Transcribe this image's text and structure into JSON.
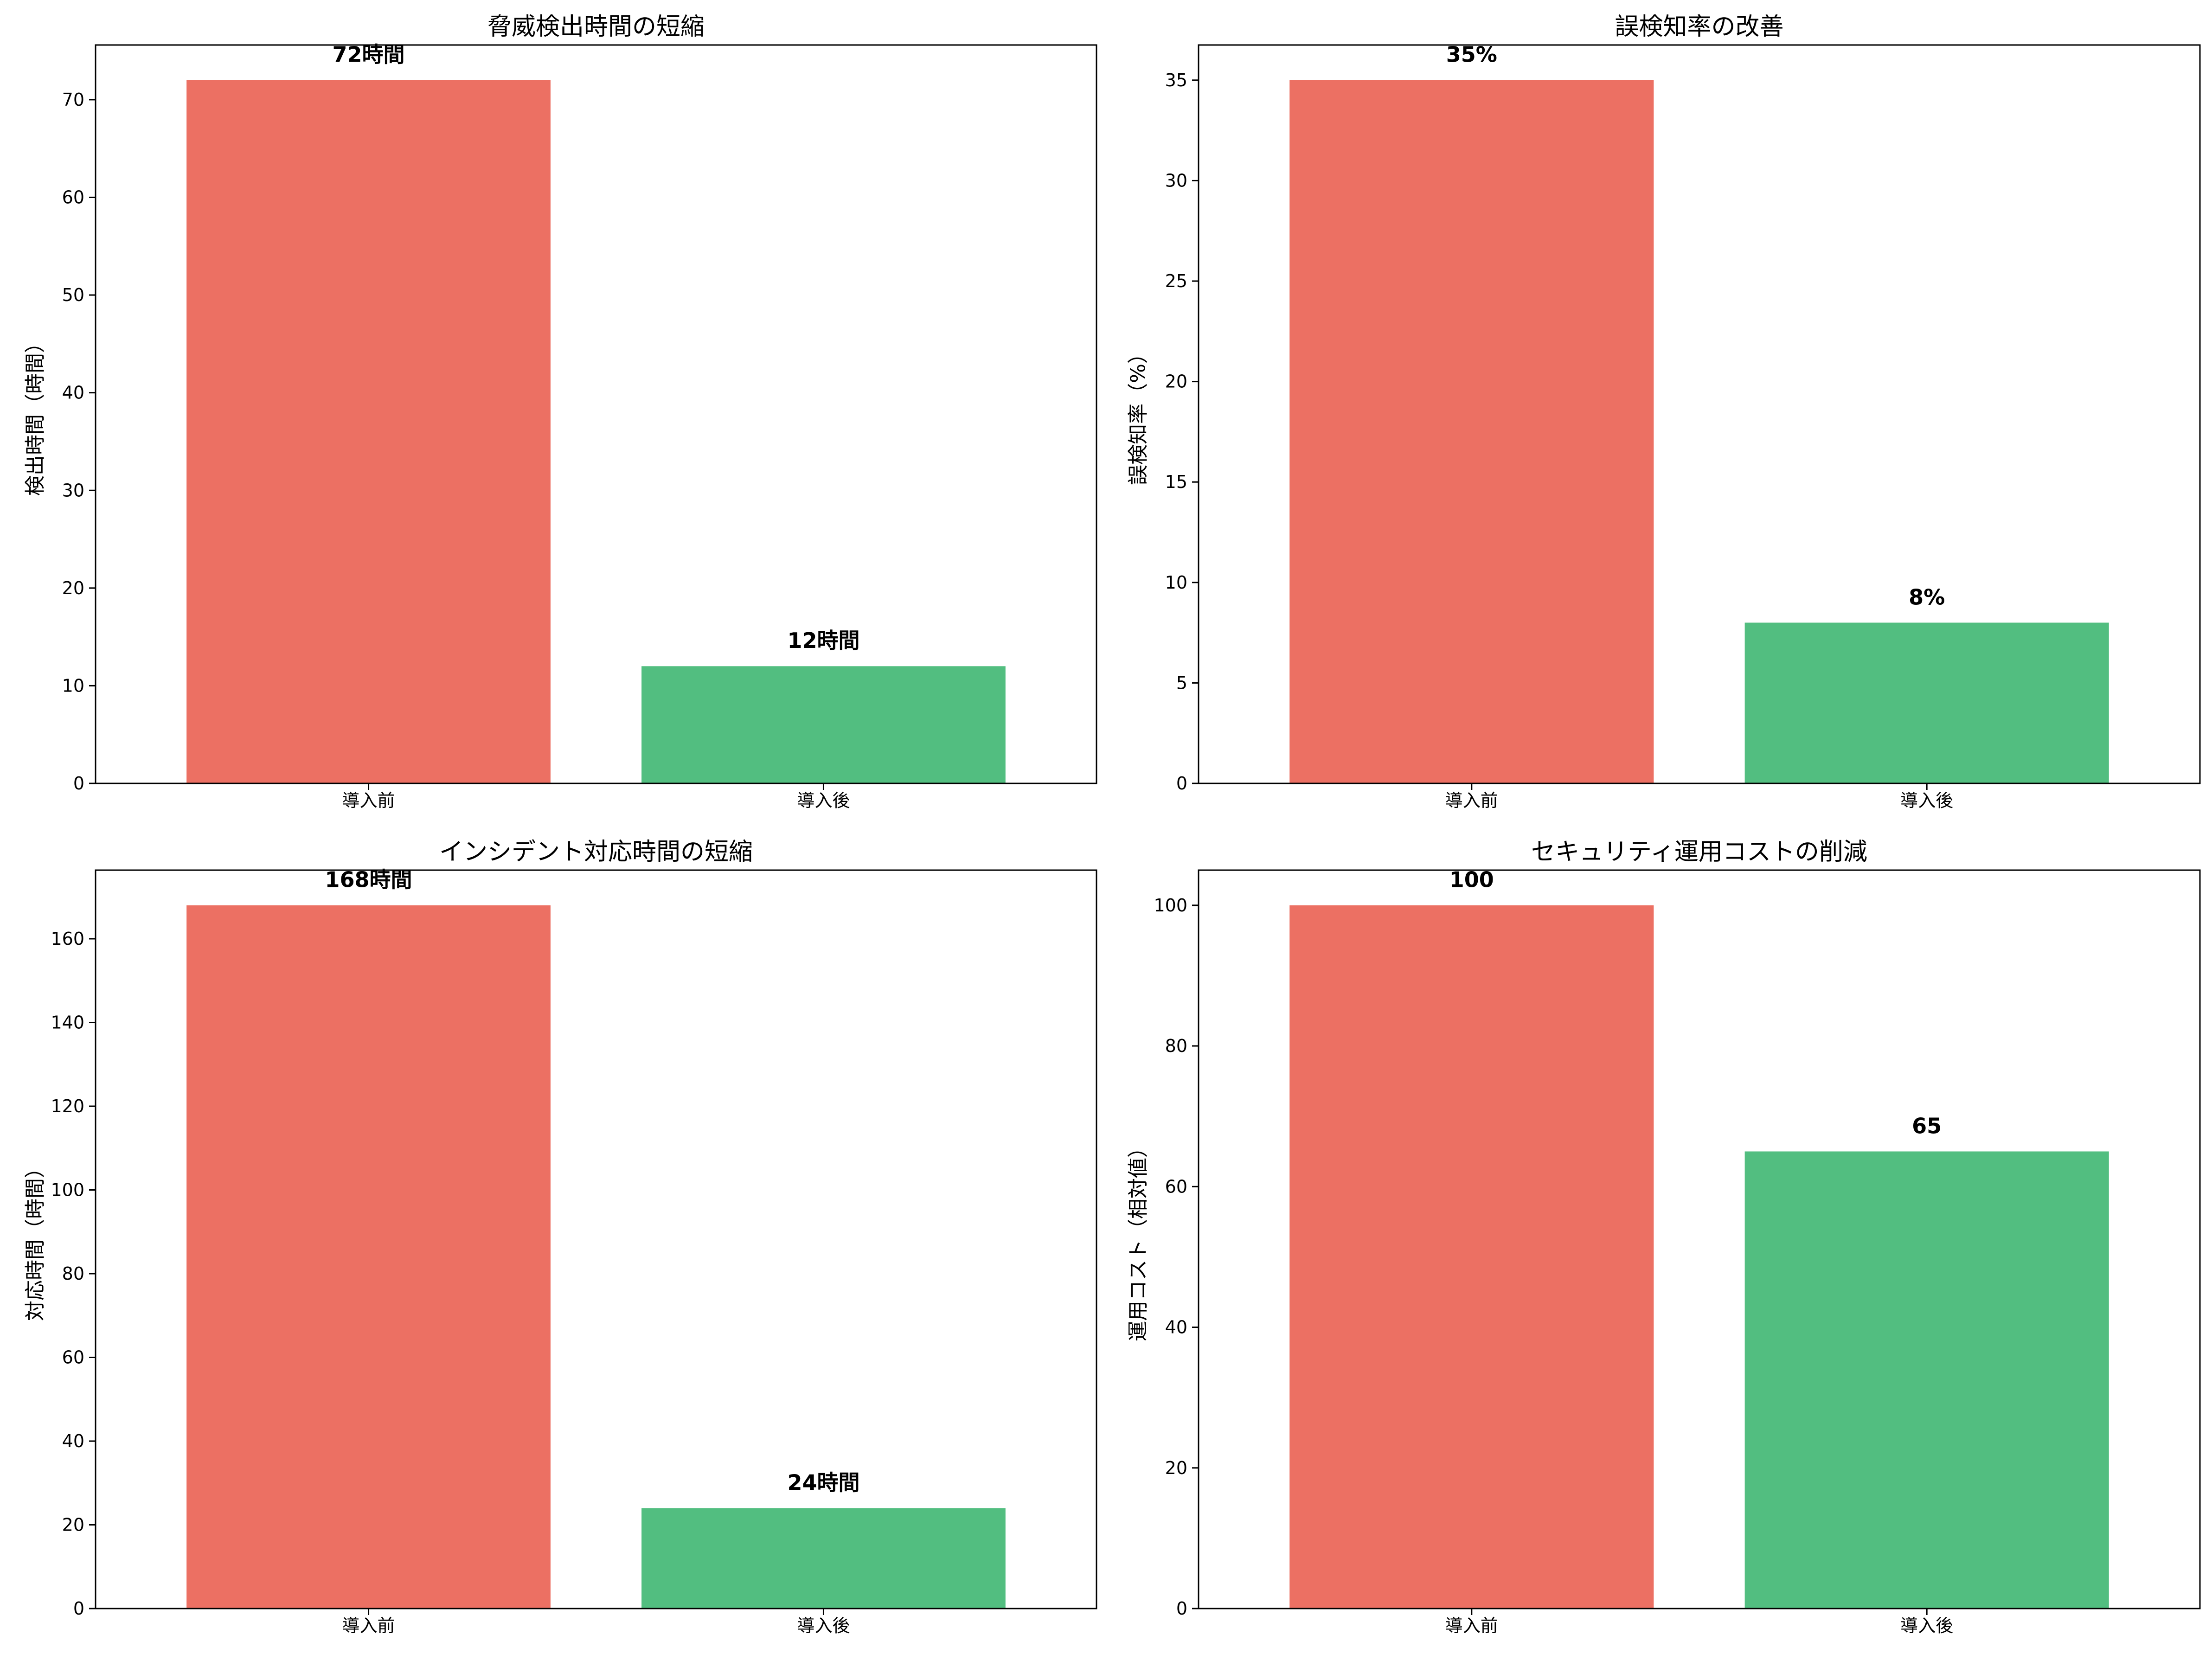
{
  "chart_data": [
    {
      "type": "bar",
      "title": "脅威検出時間の短縮",
      "xlabel": "",
      "ylabel": "検出時間（時間）",
      "categories": [
        "導入前",
        "導入後"
      ],
      "values": [
        72,
        12
      ],
      "value_labels": [
        "72時間",
        "12時間"
      ],
      "colors": [
        "#ec7063",
        "#52be80"
      ],
      "ylim": [
        0,
        75.6
      ],
      "yticks": [
        0,
        10,
        20,
        30,
        40,
        50,
        60,
        70
      ],
      "grid": false
    },
    {
      "type": "bar",
      "title": "誤検知率の改善",
      "xlabel": "",
      "ylabel": "誤検知率（%）",
      "categories": [
        "導入前",
        "導入後"
      ],
      "values": [
        35,
        8
      ],
      "value_labels": [
        "35%",
        "8%"
      ],
      "colors": [
        "#ec7063",
        "#52be80"
      ],
      "ylim": [
        0,
        36.75
      ],
      "yticks": [
        0,
        5,
        10,
        15,
        20,
        25,
        30,
        35
      ],
      "grid": false
    },
    {
      "type": "bar",
      "title": "インシデント対応時間の短縮",
      "xlabel": "",
      "ylabel": "対応時間（時間）",
      "categories": [
        "導入前",
        "導入後"
      ],
      "values": [
        168,
        24
      ],
      "value_labels": [
        "168時間",
        "24時間"
      ],
      "colors": [
        "#ec7063",
        "#52be80"
      ],
      "ylim": [
        0,
        176.4
      ],
      "yticks": [
        0,
        20,
        40,
        60,
        80,
        100,
        120,
        140,
        160
      ],
      "grid": false
    },
    {
      "type": "bar",
      "title": "セキュリティ運用コストの削減",
      "xlabel": "",
      "ylabel": "運用コスト（相対値）",
      "categories": [
        "導入前",
        "導入後"
      ],
      "values": [
        100,
        65
      ],
      "value_labels": [
        "100",
        "65"
      ],
      "colors": [
        "#ec7063",
        "#52be80"
      ],
      "ylim": [
        0,
        105
      ],
      "yticks": [
        0,
        20,
        40,
        60,
        80,
        100
      ],
      "grid": false
    }
  ]
}
